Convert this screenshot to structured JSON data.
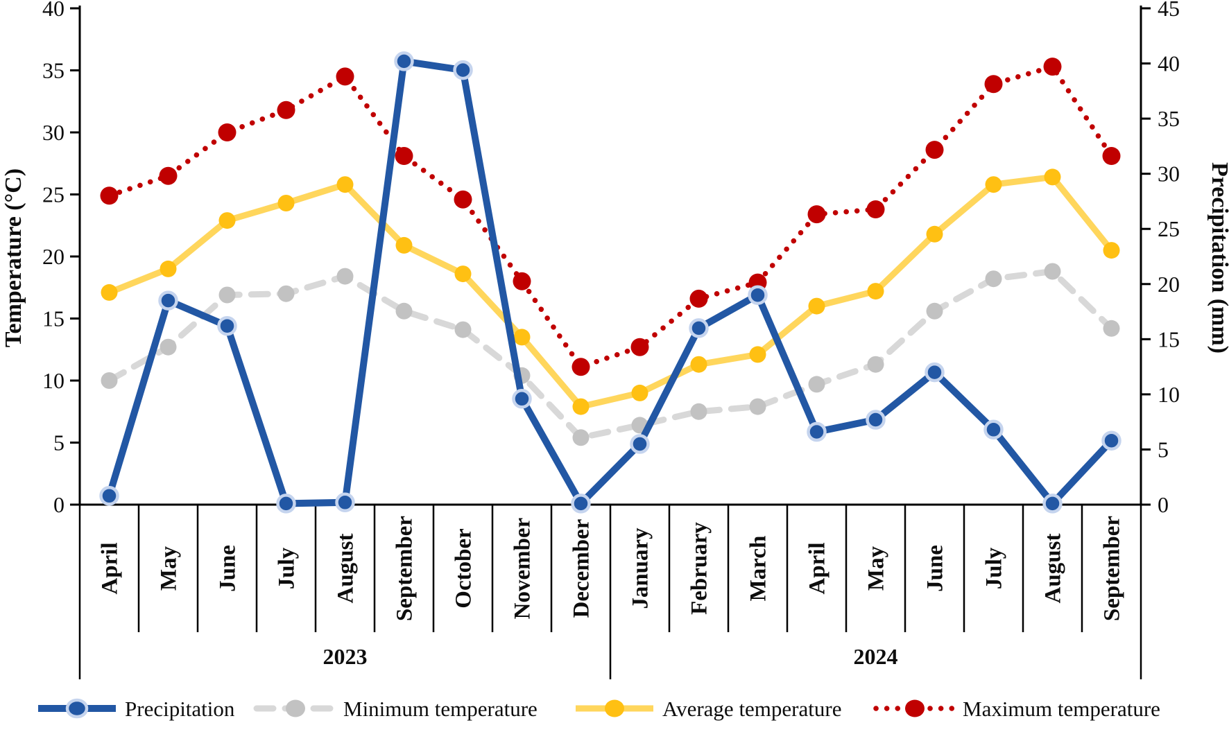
{
  "chart_data": {
    "type": "line",
    "title": "",
    "categories": [
      "April",
      "May",
      "June",
      "July",
      "August",
      "September",
      "October",
      "November",
      "December",
      "January",
      "February",
      "March",
      "April",
      "May",
      "June",
      "July",
      "August",
      "September"
    ],
    "year_groups": [
      {
        "label": "2023",
        "start_index": 0,
        "end_index": 8
      },
      {
        "label": "2024",
        "start_index": 9,
        "end_index": 17
      }
    ],
    "left_axis": {
      "title": "Temperature (°C)",
      "min": 0,
      "max": 40,
      "step": 5,
      "ticks": [
        0,
        5,
        10,
        15,
        20,
        25,
        30,
        35,
        40
      ]
    },
    "right_axis": {
      "title": "Precipitation (mm)",
      "min": 0,
      "max": 45,
      "step": 5,
      "ticks": [
        0,
        5,
        10,
        15,
        20,
        25,
        30,
        35,
        40,
        45
      ]
    },
    "grid": false,
    "legend_position": "bottom",
    "series": [
      {
        "name": "Precipitation",
        "axis": "right",
        "style": "solid-thick",
        "line_color": "#2257A4",
        "marker_color": "#2257A4",
        "marker_halo": "#C5D4EE",
        "values": [
          0.8,
          18.5,
          16.2,
          0.1,
          0.2,
          40.2,
          39.4,
          9.6,
          0.1,
          5.5,
          16.0,
          19.0,
          6.6,
          7.7,
          12.0,
          6.8,
          0.1,
          5.8
        ]
      },
      {
        "name": "Minimum temperature",
        "axis": "left",
        "style": "dashed",
        "line_color": "#D8D8D8",
        "marker_color": "#C2C2C2",
        "values": [
          10.0,
          12.7,
          16.9,
          17.0,
          18.4,
          15.6,
          14.1,
          10.4,
          5.4,
          6.4,
          7.5,
          7.9,
          9.7,
          11.3,
          15.6,
          18.2,
          18.8,
          14.2
        ]
      },
      {
        "name": "Average temperature",
        "axis": "left",
        "style": "solid",
        "line_color": "#FFD65C",
        "marker_color": "#FFC013",
        "values": [
          17.1,
          19.0,
          22.9,
          24.3,
          25.8,
          20.9,
          18.6,
          13.5,
          7.9,
          9.0,
          11.3,
          12.1,
          16.0,
          17.2,
          21.8,
          25.8,
          26.4,
          20.5
        ]
      },
      {
        "name": "Maximum temperature",
        "axis": "left",
        "style": "dotted",
        "line_color": "#C00000",
        "marker_color": "#C00000",
        "values": [
          24.9,
          26.5,
          30.0,
          31.8,
          34.5,
          28.1,
          24.6,
          18.0,
          11.1,
          12.7,
          16.6,
          17.9,
          23.4,
          23.8,
          28.6,
          33.9,
          35.3,
          28.1
        ]
      }
    ],
    "axis_color": "#000000"
  }
}
